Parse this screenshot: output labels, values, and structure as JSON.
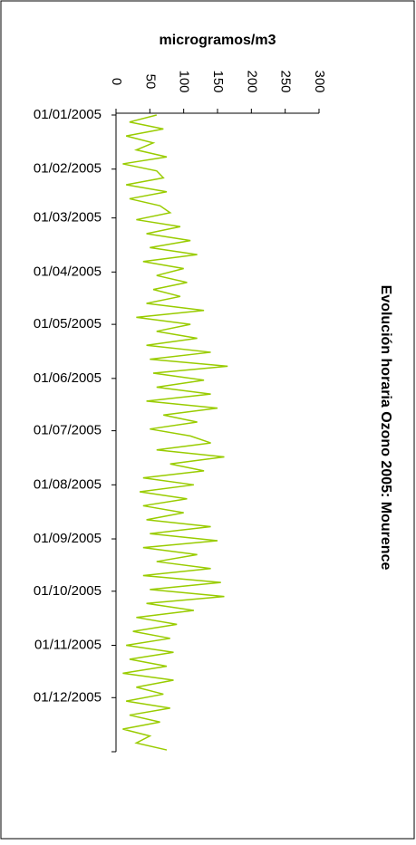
{
  "chart_data": {
    "type": "line",
    "title": "Evolución horaria Ozono 2005: Mourence",
    "y_label": "microgramos/m3",
    "xlim": [
      0,
      365
    ],
    "xticks": [
      {
        "value": 0,
        "label": "01/01/2005"
      },
      {
        "value": 31,
        "label": "01/02/2005"
      },
      {
        "value": 59,
        "label": "01/03/2005"
      },
      {
        "value": 90,
        "label": "01/04/2005"
      },
      {
        "value": 120,
        "label": "01/05/2005"
      },
      {
        "value": 151,
        "label": "01/06/2005"
      },
      {
        "value": 181,
        "label": "01/07/2005"
      },
      {
        "value": 212,
        "label": "01/08/2005"
      },
      {
        "value": 243,
        "label": "01/09/2005"
      },
      {
        "value": 273,
        "label": "01/10/2005"
      },
      {
        "value": 304,
        "label": "01/11/2005"
      },
      {
        "value": 334,
        "label": "01/12/2005"
      }
    ],
    "ylim": [
      0,
      300
    ],
    "yticks": [
      0,
      50,
      100,
      150,
      200,
      250,
      300
    ],
    "x": [
      0,
      4,
      8,
      12,
      16,
      20,
      24,
      28,
      32,
      36,
      40,
      44,
      48,
      52,
      56,
      60,
      64,
      68,
      72,
      76,
      80,
      84,
      88,
      92,
      96,
      100,
      104,
      108,
      112,
      116,
      120,
      124,
      128,
      132,
      136,
      140,
      144,
      148,
      152,
      156,
      160,
      164,
      168,
      172,
      176,
      180,
      184,
      188,
      192,
      196,
      200,
      204,
      208,
      212,
      216,
      220,
      224,
      228,
      232,
      236,
      240,
      244,
      248,
      252,
      256,
      260,
      264,
      268,
      272,
      276,
      280,
      284,
      288,
      292,
      296,
      300,
      304,
      308,
      312,
      316,
      320,
      324,
      328,
      332,
      336,
      340,
      344,
      348,
      352,
      356,
      360,
      364
    ],
    "series": [
      {
        "color": "#99cc00",
        "values": [
          60,
          20,
          70,
          15,
          55,
          30,
          75,
          10,
          60,
          70,
          15,
          75,
          20,
          65,
          80,
          30,
          95,
          45,
          110,
          50,
          120,
          40,
          100,
          60,
          105,
          55,
          95,
          45,
          130,
          30,
          110,
          60,
          120,
          45,
          140,
          50,
          165,
          55,
          130,
          60,
          140,
          45,
          150,
          70,
          120,
          50,
          110,
          140,
          60,
          160,
          80,
          130,
          40,
          115,
          35,
          105,
          40,
          100,
          45,
          140,
          50,
          150,
          40,
          120,
          60,
          140,
          40,
          155,
          50,
          160,
          45,
          115,
          30,
          90,
          25,
          80,
          15,
          85,
          20,
          75,
          10,
          85,
          30,
          70,
          15,
          80,
          20,
          65,
          10,
          50,
          30,
          75
        ]
      }
    ]
  }
}
